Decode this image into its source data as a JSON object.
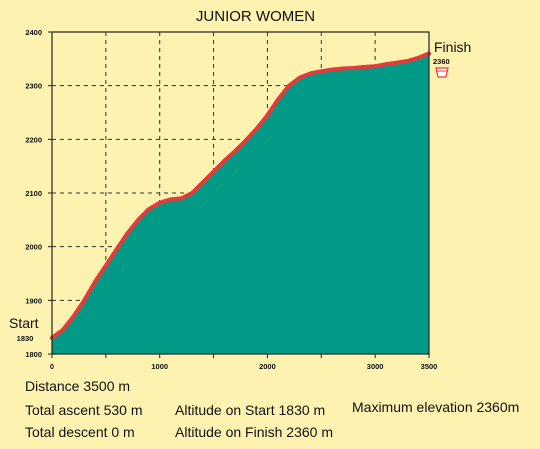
{
  "chart_data": {
    "type": "area",
    "title": "JUNIOR WOMEN",
    "xlabel": "",
    "ylabel": "",
    "xlim": [
      0,
      3500
    ],
    "ylim": [
      1800,
      2400
    ],
    "x_ticks": [
      0,
      1000,
      2000,
      3000,
      3500
    ],
    "x_ticks_unlabeled": [
      500,
      1500,
      2500
    ],
    "y_ticks": [
      1800,
      1900,
      2000,
      2100,
      2200,
      2300,
      2400
    ],
    "grid": true,
    "series": [
      {
        "x": [
          0,
          100,
          200,
          300,
          400,
          500,
          600,
          700,
          800,
          900,
          1000,
          1100,
          1200,
          1300,
          1400,
          1500,
          1600,
          1700,
          1800,
          1900,
          2000,
          2100,
          2200,
          2300,
          2400,
          2500,
          2600,
          2700,
          2800,
          2900,
          3000,
          3100,
          3200,
          3300,
          3400,
          3500
        ],
        "y": [
          1830,
          1845,
          1870,
          1900,
          1935,
          1965,
          1995,
          2025,
          2050,
          2070,
          2082,
          2088,
          2090,
          2100,
          2120,
          2140,
          2160,
          2178,
          2198,
          2220,
          2245,
          2275,
          2300,
          2315,
          2323,
          2327,
          2330,
          2332,
          2333,
          2335,
          2336,
          2340,
          2343,
          2346,
          2352,
          2360
        ]
      }
    ],
    "colors": {
      "fill": "#009a87",
      "line": "#e23b3b",
      "background": "#fdf2b0",
      "plot_background": "#fdf2b0",
      "grid": "#333333"
    },
    "annotations": {
      "start_label": "Start",
      "start_value": "1830",
      "finish_label": "Finish",
      "finish_value": "2360",
      "finish_icon": "cup-icon"
    }
  },
  "stats": {
    "distance": "Distance   3500 m",
    "total_ascent": "Total ascent   530 m",
    "total_descent": "Total descent   0 m",
    "altitude_start": "Altitude on Start  1830 m",
    "altitude_finish": "Altitude on Finish  2360 m",
    "max_elevation": "Maximum elevation  2360m"
  }
}
